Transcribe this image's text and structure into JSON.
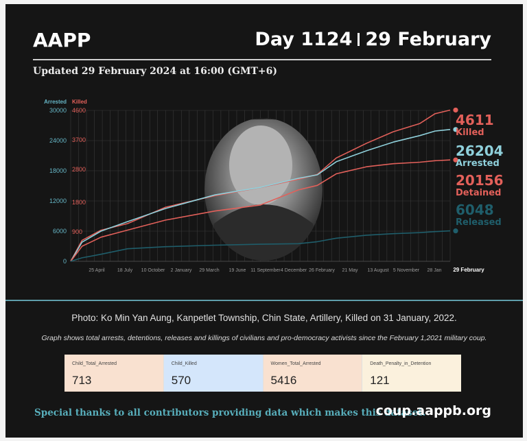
{
  "header": {
    "brand": "AAPP",
    "day": "Day 1124",
    "date": "29 February",
    "updated": "Updated 29 February 2024 at 16:00 (GMT+6)"
  },
  "chart_data": {
    "type": "line",
    "left_axis_label": "Arrested",
    "right_axis_label": "Killed",
    "arrested_ticks": [
      0,
      6000,
      12000,
      18000,
      24000,
      30000
    ],
    "killed_ticks": [
      900,
      1800,
      2800,
      3700,
      4600
    ],
    "x_ticks": [
      "25 April",
      "18 July",
      "10 October",
      "2 January",
      "29 March",
      "19 June",
      "11 September",
      "4 December",
      "26 February",
      "21 May",
      "13 August",
      "5 November",
      "28 Jan",
      "29 February"
    ],
    "arrested_max": 30000,
    "killed_max": 4600,
    "x": [
      0,
      0.03,
      0.08,
      0.15,
      0.25,
      0.38,
      0.5,
      0.6,
      0.65,
      0.7,
      0.78,
      0.85,
      0.92,
      0.96,
      1.0
    ],
    "series": [
      {
        "name": "Killed",
        "axis": "killed",
        "color": "#e2605a",
        "end_value": 4611,
        "values": [
          0,
          640,
          950,
          1150,
          1650,
          2000,
          2250,
          2500,
          2650,
          3150,
          3600,
          3950,
          4200,
          4500,
          4611
        ]
      },
      {
        "name": "Arrested",
        "axis": "arrested",
        "color": "#8fd0db",
        "end_value": 26204,
        "values": [
          0,
          3800,
          6000,
          7900,
          10500,
          13200,
          14700,
          16500,
          17200,
          19800,
          22000,
          23700,
          25000,
          25900,
          26204
        ]
      },
      {
        "name": "Detained",
        "axis": "arrested",
        "color": "#e2605a",
        "end_value": 20156,
        "values": [
          0,
          3000,
          4800,
          6200,
          8200,
          10000,
          11200,
          14200,
          15100,
          17400,
          18800,
          19400,
          19700,
          20000,
          20156
        ]
      },
      {
        "name": "Released",
        "axis": "arrested",
        "color": "#1f5e6b",
        "end_value": 6048,
        "values": [
          0,
          700,
          1400,
          2500,
          2900,
          3200,
          3400,
          3500,
          3900,
          4600,
          5200,
          5500,
          5700,
          5900,
          6048
        ]
      }
    ]
  },
  "captions": {
    "photo": "Photo: Ko Min Yan Aung, Kanpetlet Township, Chin State, Artillery, Killed on 31 January, 2022.",
    "graph": "Graph shows total arrests, detentions, releases and killings of civilians and pro-democracy activists since the February 1,2021 military coup."
  },
  "stats": [
    {
      "label": "Child_Total_Arrested",
      "value": "713",
      "color": "#f9e1d0"
    },
    {
      "label": "Child_Killed",
      "value": "570",
      "color": "#d4e6fb"
    },
    {
      "label": "Women_Total_Arrested",
      "value": "5416",
      "color": "#f9e1d0"
    },
    {
      "label": "Death_Penalty_in_Detention",
      "value": "121",
      "color": "#fbf1dd"
    }
  ],
  "footer": {
    "thanks": "Special thanks to all contributors providing data which makes this dataset.",
    "website": "coup.aappb.org"
  }
}
